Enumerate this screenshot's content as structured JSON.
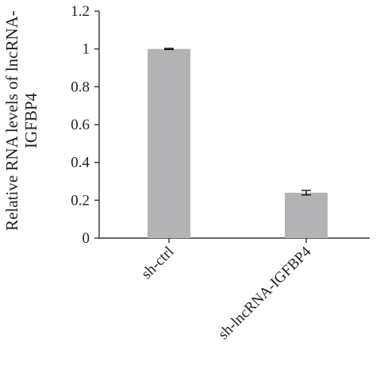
{
  "chart_data": {
    "type": "bar",
    "categories": [
      "sh-ctrl",
      "sh-lncRNA-IGFBP4"
    ],
    "values": [
      1.0,
      0.24
    ],
    "errors": [
      0.003,
      0.012
    ],
    "ylabel_lines": [
      "Relative RNA levels of lncRNA-",
      "IGFBP4"
    ],
    "xlabel": "",
    "ylim": [
      0,
      1.2
    ],
    "yticks": [
      0,
      0.2,
      0.4,
      0.6,
      0.8,
      1,
      1.2
    ],
    "ytick_labels": [
      "0",
      "0.2",
      "0.4",
      "0.6",
      "0.8",
      "1",
      "1.2"
    ],
    "grid": false,
    "colors": {
      "bar": "#b3b3b5",
      "axis": "#333333",
      "text": "#222222"
    }
  }
}
